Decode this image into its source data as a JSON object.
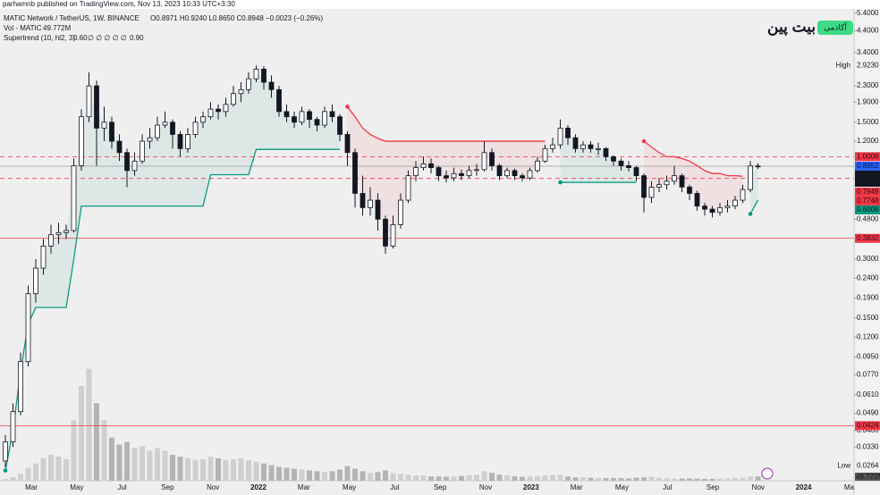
{
  "chart_data": {
    "type": "candlestick",
    "published": "parhamnb published on TradingView.com, Nov 13, 2023 10:33 UTC+3:30",
    "title": "MATIC Network / TetherUS, 1W, BINANCE",
    "ohlc_text": "O0.8971 H0.9240 L0.8650 C0.8948 −0.0023 (−0.26%)",
    "vol_name": "Vol - MATIC",
    "vol_value_label": "49.772M",
    "supertrend_name": "Supertrend (10, hl2, 3)",
    "supertrend_values": [
      "0.60",
      "∅ ∅ ∅ ∅ ∅",
      "0.90"
    ],
    "logo": "بیت پین",
    "badge": "آکادمی",
    "log_scale": true,
    "ylim": [
      0.0222,
      5.68
    ],
    "yticks": [
      {
        "value": 5.4,
        "label": "5.4000"
      },
      {
        "value": 4.4,
        "label": "4.4000"
      },
      {
        "value": 3.4,
        "label": "3.4000"
      },
      {
        "value": 2.3,
        "label": "2.3000"
      },
      {
        "value": 1.9,
        "label": "1.9000"
      },
      {
        "value": 1.5,
        "label": "1.5000"
      },
      {
        "value": 1.2,
        "label": "1.2000"
      },
      {
        "value": 0.48,
        "label": "0.4800"
      },
      {
        "value": 0.3,
        "label": "0.3000"
      },
      {
        "value": 0.24,
        "label": "0.2400"
      },
      {
        "value": 0.19,
        "label": "0.1900"
      },
      {
        "value": 0.15,
        "label": "0.1500"
      },
      {
        "value": 0.12,
        "label": "0.1200"
      },
      {
        "value": 0.095,
        "label": "0.0950"
      },
      {
        "value": 0.077,
        "label": "0.0770"
      },
      {
        "value": 0.061,
        "label": "0.0610"
      },
      {
        "value": 0.049,
        "label": "0.0490"
      },
      {
        "value": 0.04,
        "label": "0.0400"
      },
      {
        "value": 0.033,
        "label": "0.0330"
      }
    ],
    "xticks": [
      "Mar",
      "May",
      "Jul",
      "Sep",
      "Nov",
      "2022",
      "Mar",
      "May",
      "Jul",
      "Sep",
      "Nov",
      "2023",
      "Mar",
      "May",
      "Jul",
      "Sep",
      "Nov",
      "2024",
      "Ma"
    ],
    "high_marker": {
      "label": "High",
      "value": 2.923,
      "value_label": "2.9230"
    },
    "low_marker": {
      "label": "Low",
      "value": 0.0264,
      "value_label": "0.0264"
    },
    "countdown": "6d 17h",
    "price_labels": [
      {
        "value": 1.0006,
        "label": "1.0006",
        "color": "#f23645",
        "line": "dashed"
      },
      {
        "value": 0.8952,
        "label": "0.8952",
        "color": "#2962ff",
        "line": "none"
      },
      {
        "value": 0.8948,
        "label": "0.8948",
        "color": "#131722",
        "line": "solid"
      },
      {
        "value": 0.7949,
        "label": "0.7949",
        "color": "#f23645",
        "line": "none"
      },
      {
        "value": 0.7748,
        "label": "0.7748",
        "color": "#f23645",
        "line": "dashed"
      },
      {
        "value": 0.6006,
        "label": "0.6006",
        "color": "#089981",
        "line": "none"
      },
      {
        "value": 0.3832,
        "label": "0.3832",
        "color": "#f23645",
        "line": "solid"
      },
      {
        "value": 0.0424,
        "label": "0.0424",
        "color": "#f23645",
        "line": "solid"
      }
    ],
    "up_color": "#ffffff",
    "down_color": "#131722",
    "supertrend_up_color": "#089981",
    "supertrend_down_color": "#f23645",
    "vol_ylim": [
      0,
      1400
    ],
    "open": [
      0.028,
      0.035,
      0.05,
      0.09,
      0.2,
      0.27,
      0.35,
      0.4,
      0.41,
      0.42,
      0.9,
      1.6,
      2.3,
      1.4,
      1.5,
      1.2,
      1.05,
      0.85,
      0.95,
      1.2,
      1.25,
      1.45,
      1.5,
      1.3,
      1.1,
      1.3,
      1.5,
      1.6,
      1.75,
      1.7,
      1.85,
      2.1,
      2.2,
      2.5,
      2.8,
      2.4,
      2.2,
      1.7,
      1.6,
      1.5,
      1.7,
      1.55,
      1.45,
      1.7,
      1.6,
      1.3,
      1.05,
      0.65,
      0.55,
      0.6,
      0.48,
      0.35,
      0.45,
      0.6,
      0.8,
      0.88,
      0.92,
      0.88,
      0.8,
      0.78,
      0.82,
      0.8,
      0.85,
      0.86,
      1.05,
      0.9,
      0.8,
      0.85,
      0.8,
      0.78,
      0.85,
      0.95,
      1.1,
      1.15,
      1.4,
      1.25,
      1.1,
      1.15,
      1.1,
      1.1,
      1.0,
      0.95,
      0.9,
      0.88,
      0.8,
      0.62,
      0.7,
      0.72,
      0.75,
      0.8,
      0.7,
      0.65,
      0.56,
      0.54,
      0.52,
      0.55,
      0.56,
      0.6,
      0.68,
      0.8971
    ],
    "high": [
      0.038,
      0.055,
      0.1,
      0.22,
      0.3,
      0.38,
      0.45,
      0.46,
      0.45,
      0.98,
      1.75,
      2.7,
      2.45,
      1.8,
      1.6,
      1.3,
      1.1,
      1.05,
      1.3,
      1.4,
      1.6,
      1.7,
      1.55,
      1.35,
      1.4,
      1.6,
      1.7,
      1.9,
      1.85,
      2.0,
      2.3,
      2.4,
      2.7,
      2.923,
      2.9,
      2.6,
      2.3,
      1.85,
      1.7,
      1.8,
      1.75,
      1.6,
      1.8,
      1.85,
      1.65,
      1.35,
      1.1,
      0.8,
      0.7,
      0.65,
      0.5,
      0.5,
      0.65,
      0.85,
      0.95,
      1.0,
      0.98,
      0.9,
      0.85,
      0.88,
      0.86,
      0.9,
      0.92,
      1.2,
      1.1,
      0.92,
      0.88,
      0.87,
      0.82,
      0.88,
      1.0,
      1.15,
      1.25,
      1.55,
      1.45,
      1.3,
      1.2,
      1.2,
      1.18,
      1.12,
      1.02,
      0.98,
      0.95,
      0.9,
      0.82,
      0.75,
      0.78,
      0.8,
      0.9,
      0.82,
      0.72,
      0.67,
      0.58,
      0.56,
      0.58,
      0.6,
      0.63,
      0.72,
      0.95,
      0.924
    ],
    "low": [
      0.026,
      0.033,
      0.048,
      0.085,
      0.18,
      0.25,
      0.32,
      0.36,
      0.38,
      0.41,
      0.85,
      1.5,
      0.9,
      1.2,
      1.1,
      0.95,
      0.7,
      0.8,
      0.92,
      1.1,
      1.2,
      1.4,
      1.1,
      1.0,
      1.05,
      1.25,
      1.4,
      1.55,
      1.55,
      1.6,
      1.8,
      1.9,
      2.1,
      2.4,
      2.2,
      2.0,
      1.6,
      1.5,
      1.4,
      1.45,
      1.4,
      1.35,
      1.4,
      1.5,
      1.2,
      0.9,
      0.55,
      0.5,
      0.5,
      0.42,
      0.32,
      0.34,
      0.43,
      0.58,
      0.75,
      0.85,
      0.82,
      0.75,
      0.74,
      0.75,
      0.76,
      0.78,
      0.8,
      0.84,
      0.85,
      0.76,
      0.78,
      0.76,
      0.75,
      0.76,
      0.83,
      0.93,
      1.05,
      1.1,
      1.15,
      1.05,
      1.05,
      1.05,
      1.02,
      0.95,
      0.9,
      0.85,
      0.84,
      0.75,
      0.52,
      0.58,
      0.66,
      0.68,
      0.72,
      0.66,
      0.6,
      0.53,
      0.5,
      0.49,
      0.5,
      0.52,
      0.54,
      0.58,
      0.66,
      0.865
    ],
    "close": [
      0.035,
      0.05,
      0.09,
      0.2,
      0.27,
      0.35,
      0.4,
      0.41,
      0.42,
      0.9,
      1.6,
      2.3,
      1.4,
      1.5,
      1.2,
      1.05,
      0.85,
      0.95,
      1.2,
      1.25,
      1.45,
      1.5,
      1.3,
      1.1,
      1.3,
      1.5,
      1.6,
      1.75,
      1.7,
      1.85,
      2.1,
      2.2,
      2.5,
      2.8,
      2.4,
      2.2,
      1.7,
      1.6,
      1.5,
      1.7,
      1.55,
      1.45,
      1.7,
      1.6,
      1.3,
      1.05,
      0.65,
      0.55,
      0.6,
      0.48,
      0.35,
      0.45,
      0.6,
      0.8,
      0.88,
      0.92,
      0.88,
      0.8,
      0.78,
      0.82,
      0.8,
      0.85,
      0.86,
      1.05,
      0.9,
      0.8,
      0.85,
      0.8,
      0.78,
      0.85,
      0.95,
      1.1,
      1.15,
      1.4,
      1.25,
      1.1,
      1.15,
      1.1,
      1.1,
      1.0,
      0.95,
      0.9,
      0.88,
      0.8,
      0.62,
      0.7,
      0.72,
      0.75,
      0.8,
      0.7,
      0.65,
      0.56,
      0.54,
      0.52,
      0.55,
      0.56,
      0.6,
      0.68,
      0.8971,
      0.8948
    ],
    "volume": [
      20,
      40,
      80,
      150,
      200,
      260,
      300,
      280,
      250,
      700,
      1100,
      1300,
      900,
      700,
      500,
      420,
      450,
      380,
      400,
      350,
      380,
      350,
      300,
      280,
      260,
      240,
      250,
      280,
      260,
      240,
      250,
      260,
      240,
      220,
      200,
      180,
      160,
      150,
      140,
      130,
      120,
      110,
      100,
      110,
      130,
      170,
      140,
      110,
      90,
      100,
      120,
      90,
      80,
      70,
      60,
      60,
      50,
      50,
      45,
      50,
      55,
      60,
      70,
      110,
      90,
      70,
      60,
      50,
      45,
      50,
      55,
      60,
      65,
      70,
      50,
      40,
      40,
      35,
      30,
      30,
      30,
      30,
      28,
      35,
      40,
      45,
      35,
      28,
      25,
      25,
      25,
      24,
      22,
      22,
      25,
      28,
      30,
      35,
      50,
      49.772
    ],
    "supertrend_up": [
      0.025,
      0.04,
      0.08,
      0.14,
      0.17,
      0.17,
      0.17,
      0.17,
      0.17,
      0.3,
      0.56,
      0.56,
      0.56,
      0.56,
      0.56,
      0.56,
      0.56,
      0.56,
      0.56,
      0.56,
      0.56,
      0.56,
      0.56,
      0.56,
      0.56,
      0.56,
      0.56,
      0.81,
      0.81,
      0.81,
      0.81,
      0.81,
      0.81,
      1.09,
      1.09,
      1.09,
      1.09,
      1.09,
      1.09,
      1.09,
      1.09,
      1.09,
      1.09,
      1.09,
      1.09,
      null,
      null,
      null,
      null,
      null,
      null,
      null,
      null,
      null,
      null,
      null,
      null,
      null,
      null,
      null,
      null,
      null,
      null,
      null,
      null,
      null,
      null,
      null,
      null,
      null,
      null,
      null,
      null,
      0.74,
      0.74,
      0.74,
      0.74,
      0.74,
      0.74,
      0.74,
      0.74,
      0.74,
      0.74,
      0.74,
      null,
      null,
      null,
      null,
      null,
      null,
      null,
      null,
      null,
      null,
      null,
      null,
      null,
      null,
      0.51,
      0.6006
    ],
    "supertrend_down": [
      null,
      null,
      null,
      null,
      null,
      null,
      null,
      null,
      null,
      null,
      null,
      null,
      null,
      null,
      null,
      null,
      null,
      null,
      null,
      null,
      null,
      null,
      null,
      null,
      null,
      null,
      null,
      null,
      null,
      null,
      null,
      null,
      null,
      null,
      null,
      null,
      null,
      null,
      null,
      null,
      null,
      null,
      null,
      null,
      null,
      1.8,
      1.6,
      1.4,
      1.3,
      1.24,
      1.2,
      1.2,
      1.2,
      1.2,
      1.2,
      1.2,
      1.2,
      1.2,
      1.2,
      1.2,
      1.2,
      1.2,
      1.2,
      1.2,
      1.2,
      1.2,
      1.2,
      1.2,
      1.2,
      1.2,
      1.2,
      1.2,
      null,
      null,
      null,
      null,
      null,
      null,
      null,
      null,
      null,
      null,
      null,
      null,
      1.2,
      1.12,
      1.05,
      1.0,
      1.0,
      0.98,
      0.95,
      0.9,
      0.85,
      0.82,
      0.82,
      0.8,
      0.8,
      0.7949,
      null,
      null
    ]
  }
}
